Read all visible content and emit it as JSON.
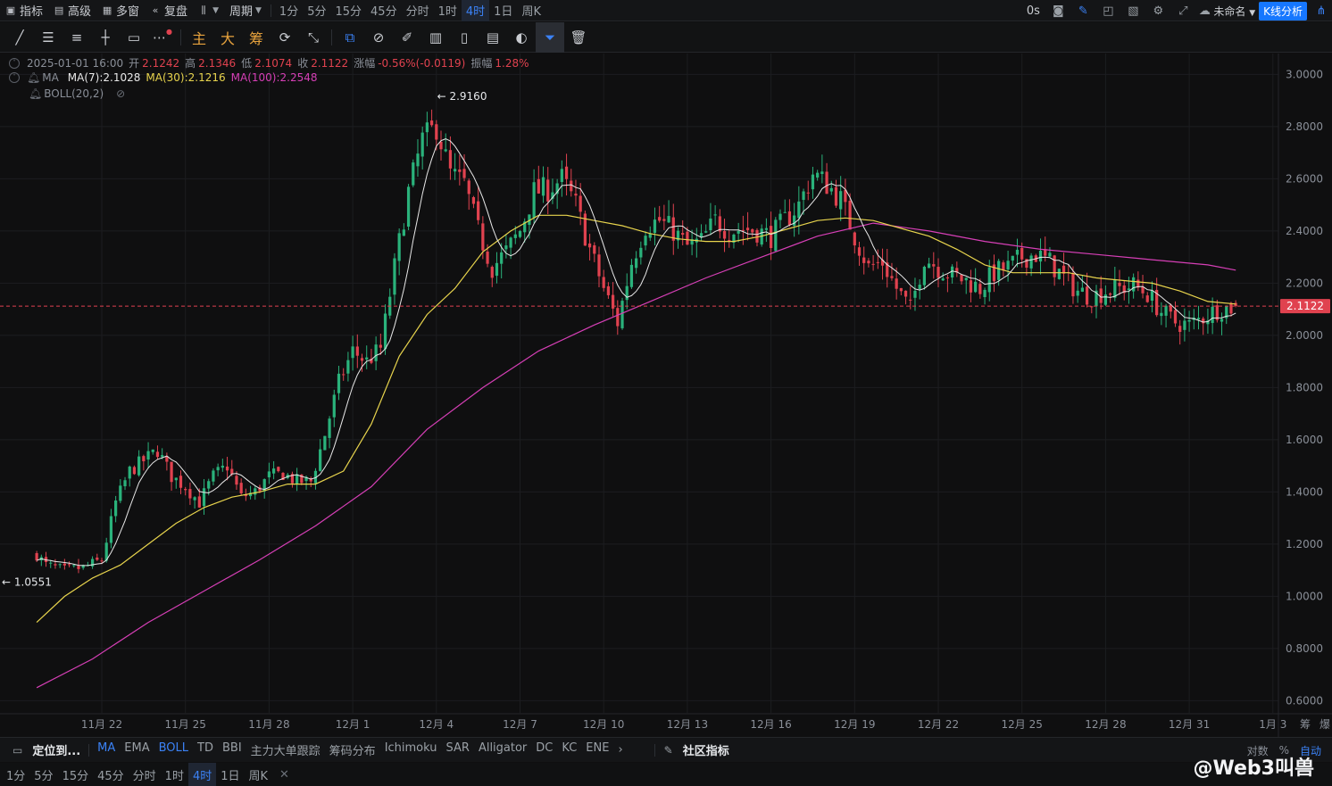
{
  "topbar": {
    "items": [
      {
        "name": "indicators-button",
        "icon": "chart-icon",
        "label": "指标"
      },
      {
        "name": "advanced-button",
        "icon": "calendar-icon",
        "label": "高级"
      },
      {
        "name": "multi-window-button",
        "icon": "grid-icon",
        "label": "多窗"
      },
      {
        "name": "replay-button",
        "icon": "rewind-icon",
        "label": "复盘"
      }
    ],
    "chart_type_icon": "candles-icon",
    "period_label": "周期",
    "timeframes": [
      "1分",
      "5分",
      "15分",
      "45分",
      "分时",
      "1时",
      "4时",
      "1日",
      "周K"
    ],
    "active_timeframe": "4时",
    "countdown": "0s",
    "layout_name": "未命名",
    "kline_button": "K线分析"
  },
  "drawbar": {
    "tools": [
      "line-tool-icon",
      "parallel-lines-icon",
      "lines-icon",
      "horizontal-line-icon",
      "rectangle-icon",
      "more-icon"
    ],
    "text_tools": [
      "主",
      "大",
      "筹"
    ],
    "tools2": [
      "cycle-icon",
      "measure-icon",
      "select-icon",
      "ruler-icon",
      "brush-icon",
      "bars-icon",
      "lock-icon",
      "list-icon",
      "magnet-icon",
      "filter-icon",
      "trash-icon"
    ]
  },
  "info": {
    "datetime": "2025-01-01 16:00",
    "open_label": "开",
    "open": "2.1242",
    "high_label": "高",
    "high": "2.1346",
    "low_label": "低",
    "low": "2.1074",
    "close_label": "收",
    "close": "2.1122",
    "change_label": "涨幅",
    "change": "-0.56%(-0.0119)",
    "amp_label": "振幅",
    "amp": "1.28%",
    "ma_label": "MA",
    "ma7": "MA(7):2.1028",
    "ma30": "MA(30):2.1216",
    "ma100": "MA(100):2.2548",
    "boll": "BOLL(20,2)"
  },
  "colors": {
    "up": "#2ab27b",
    "down": "#e0424f",
    "ma7": "#e8e8e8",
    "ma30": "#e8d44d",
    "ma100": "#d63fb6",
    "axis_text": "#8a8f98",
    "current_price": "#e0424f"
  },
  "chart_data": {
    "type": "candlestick",
    "interval": "4h",
    "x_ticks": [
      "11月 22",
      "11月 25",
      "11月 28",
      "12月 1",
      "12月 4",
      "12月 7",
      "12月 10",
      "12月 13",
      "12月 16",
      "12月 19",
      "12月 22",
      "12月 25",
      "12月 28",
      "12月 31",
      "1月 3"
    ],
    "y_ticks": [
      "3.0000",
      "2.8000",
      "2.6000",
      "2.4000",
      "2.2000",
      "2.0000",
      "1.8000",
      "1.6000",
      "1.4000",
      "1.2000",
      "1.0000",
      "0.8000",
      "0.6000"
    ],
    "ylim": [
      0.55,
      3.08
    ],
    "current_price": "2.1122",
    "high_marker": "2.9160",
    "low_marker": "1.0551",
    "close_path": [
      [
        "11-19 16:00",
        1.16
      ],
      [
        "11-20 00:00",
        1.12
      ],
      [
        "11-20 16:00",
        1.1
      ],
      [
        "11-21 08:00",
        1.11
      ],
      [
        "11-22 00:00",
        1.14
      ],
      [
        "11-22 12:00",
        1.36
      ],
      [
        "11-23 00:00",
        1.48
      ],
      [
        "11-23 12:00",
        1.52
      ],
      [
        "11-24 00:00",
        1.56
      ],
      [
        "11-24 12:00",
        1.46
      ],
      [
        "11-25 00:00",
        1.42
      ],
      [
        "11-25 12:00",
        1.36
      ],
      [
        "11-26 00:00",
        1.46
      ],
      [
        "11-26 12:00",
        1.5
      ],
      [
        "11-27 00:00",
        1.38
      ],
      [
        "11-27 12:00",
        1.4
      ],
      [
        "11-28 00:00",
        1.46
      ],
      [
        "11-28 12:00",
        1.47
      ],
      [
        "11-29 00:00",
        1.44
      ],
      [
        "11-29 12:00",
        1.44
      ],
      [
        "11-30 00:00",
        1.62
      ],
      [
        "11-30 12:00",
        1.82
      ],
      [
        "12-01 00:00",
        1.94
      ],
      [
        "12-01 12:00",
        1.9
      ],
      [
        "12-02 00:00",
        1.95
      ],
      [
        "12-02 12:00",
        2.26
      ],
      [
        "12-03 00:00",
        2.55
      ],
      [
        "12-03 12:00",
        2.75
      ],
      [
        "12-04 00:00",
        2.8
      ],
      [
        "12-04 12:00",
        2.62
      ],
      [
        "12-05 00:00",
        2.58
      ],
      [
        "12-05 12:00",
        2.4
      ],
      [
        "12-06 00:00",
        2.26
      ],
      [
        "12-06 12:00",
        2.32
      ],
      [
        "12-07 00:00",
        2.4
      ],
      [
        "12-07 12:00",
        2.55
      ],
      [
        "12-08 00:00",
        2.56
      ],
      [
        "12-08 12:00",
        2.6
      ],
      [
        "12-09 00:00",
        2.5
      ],
      [
        "12-09 12:00",
        2.33
      ],
      [
        "12-10 00:00",
        2.18
      ],
      [
        "12-10 12:00",
        2.05
      ],
      [
        "12-11 00:00",
        2.28
      ],
      [
        "12-11 12:00",
        2.42
      ],
      [
        "12-12 00:00",
        2.44
      ],
      [
        "12-12 12:00",
        2.4
      ],
      [
        "12-13 00:00",
        2.34
      ],
      [
        "12-13 12:00",
        2.36
      ],
      [
        "12-14 00:00",
        2.44
      ],
      [
        "12-14 12:00",
        2.4
      ],
      [
        "12-15 00:00",
        2.41
      ],
      [
        "12-15 12:00",
        2.4
      ],
      [
        "12-16 00:00",
        2.38
      ],
      [
        "12-16 12:00",
        2.44
      ],
      [
        "12-17 00:00",
        2.5
      ],
      [
        "12-17 12:00",
        2.62
      ],
      [
        "12-18 00:00",
        2.58
      ],
      [
        "12-18 12:00",
        2.52
      ],
      [
        "12-19 00:00",
        2.38
      ],
      [
        "12-19 12:00",
        2.26
      ],
      [
        "12-20 00:00",
        2.28
      ],
      [
        "12-20 12:00",
        2.18
      ],
      [
        "12-21 00:00",
        2.1
      ],
      [
        "12-21 12:00",
        2.3
      ],
      [
        "12-22 00:00",
        2.26
      ],
      [
        "12-22 12:00",
        2.23
      ],
      [
        "12-23 00:00",
        2.21
      ],
      [
        "12-23 12:00",
        2.18
      ],
      [
        "12-24 00:00",
        2.24
      ],
      [
        "12-24 12:00",
        2.26
      ],
      [
        "12-25 00:00",
        2.3
      ],
      [
        "12-25 12:00",
        2.31
      ],
      [
        "12-26 00:00",
        2.28
      ],
      [
        "12-26 12:00",
        2.22
      ],
      [
        "12-27 00:00",
        2.17
      ],
      [
        "12-27 12:00",
        2.15
      ],
      [
        "12-28 00:00",
        2.17
      ],
      [
        "12-28 12:00",
        2.18
      ],
      [
        "12-29 00:00",
        2.19
      ],
      [
        "12-29 12:00",
        2.16
      ],
      [
        "12-30 00:00",
        2.09
      ],
      [
        "12-30 12:00",
        2.05
      ],
      [
        "12-31 00:00",
        2.04
      ],
      [
        "12-31 12:00",
        2.07
      ],
      [
        "01-01 00:00",
        2.1
      ],
      [
        "01-01 16:00",
        2.11
      ]
    ],
    "ma30_path": [
      [
        "11-19 16:00",
        0.9
      ],
      [
        "11-20 16:00",
        1.0
      ],
      [
        "11-21 16:00",
        1.07
      ],
      [
        "11-22 16:00",
        1.12
      ],
      [
        "11-23 16:00",
        1.2
      ],
      [
        "11-24 16:00",
        1.28
      ],
      [
        "11-25 16:00",
        1.34
      ],
      [
        "11-26 16:00",
        1.38
      ],
      [
        "11-27 16:00",
        1.4
      ],
      [
        "11-28 16:00",
        1.43
      ],
      [
        "11-29 16:00",
        1.43
      ],
      [
        "11-30 16:00",
        1.48
      ],
      [
        "12-01 16:00",
        1.66
      ],
      [
        "12-02 16:00",
        1.92
      ],
      [
        "12-03 16:00",
        2.08
      ],
      [
        "12-04 16:00",
        2.18
      ],
      [
        "12-05 16:00",
        2.32
      ],
      [
        "12-06 16:00",
        2.4
      ],
      [
        "12-07 16:00",
        2.46
      ],
      [
        "12-08 16:00",
        2.46
      ],
      [
        "12-09 16:00",
        2.44
      ],
      [
        "12-10 16:00",
        2.42
      ],
      [
        "12-11 16:00",
        2.39
      ],
      [
        "12-12 16:00",
        2.37
      ],
      [
        "12-13 16:00",
        2.36
      ],
      [
        "12-14 16:00",
        2.36
      ],
      [
        "12-15 16:00",
        2.38
      ],
      [
        "12-16 16:00",
        2.41
      ],
      [
        "12-17 16:00",
        2.44
      ],
      [
        "12-18 16:00",
        2.45
      ],
      [
        "12-19 16:00",
        2.44
      ],
      [
        "12-20 16:00",
        2.41
      ],
      [
        "12-21 16:00",
        2.38
      ],
      [
        "12-22 16:00",
        2.33
      ],
      [
        "12-23 16:00",
        2.27
      ],
      [
        "12-24 16:00",
        2.24
      ],
      [
        "12-25 16:00",
        2.24
      ],
      [
        "12-26 16:00",
        2.24
      ],
      [
        "12-27 16:00",
        2.22
      ],
      [
        "12-28 16:00",
        2.21
      ],
      [
        "12-29 16:00",
        2.2
      ],
      [
        "12-30 16:00",
        2.17
      ],
      [
        "12-31 16:00",
        2.13
      ],
      [
        "01-01 16:00",
        2.12
      ]
    ],
    "ma100_path": [
      [
        "11-19 16:00",
        0.65
      ],
      [
        "11-21 16:00",
        0.76
      ],
      [
        "11-23 16:00",
        0.9
      ],
      [
        "11-25 16:00",
        1.02
      ],
      [
        "11-27 16:00",
        1.14
      ],
      [
        "11-29 16:00",
        1.27
      ],
      [
        "12-01 16:00",
        1.42
      ],
      [
        "12-03 16:00",
        1.64
      ],
      [
        "12-05 16:00",
        1.8
      ],
      [
        "12-07 16:00",
        1.94
      ],
      [
        "12-09 16:00",
        2.04
      ],
      [
        "12-11 16:00",
        2.13
      ],
      [
        "12-13 16:00",
        2.22
      ],
      [
        "12-15 16:00",
        2.3
      ],
      [
        "12-17 16:00",
        2.38
      ],
      [
        "12-19 16:00",
        2.43
      ],
      [
        "12-21 16:00",
        2.4
      ],
      [
        "12-23 16:00",
        2.36
      ],
      [
        "12-25 16:00",
        2.33
      ],
      [
        "12-27 16:00",
        2.31
      ],
      [
        "12-29 16:00",
        2.29
      ],
      [
        "12-31 16:00",
        2.27
      ],
      [
        "01-01 16:00",
        2.25
      ]
    ]
  },
  "indbar": {
    "locate": "定位到...",
    "indicators": [
      "MA",
      "EMA",
      "BOLL",
      "TD",
      "BBI",
      "主力大单跟踪",
      "筹码分布",
      "Ichimoku",
      "SAR",
      "Alligator",
      "DC",
      "KC",
      "ENE"
    ],
    "active": [
      "MA",
      "BOLL"
    ],
    "community": "社区指标",
    "right": [
      "对数",
      "%",
      "自动"
    ]
  },
  "tfbar": {
    "timeframes": [
      "1分",
      "5分",
      "15分",
      "45分",
      "分时",
      "1时",
      "4时",
      "1日",
      "周K"
    ],
    "active": "4时"
  },
  "watermark": "@Web3叫兽",
  "axis_corner": [
    "筹",
    "爆"
  ]
}
